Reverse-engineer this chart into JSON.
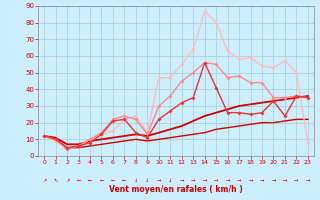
{
  "bg_color": "#cceeff",
  "grid_color": "#aacccc",
  "xlabel": "Vent moyen/en rafales ( km/h )",
  "xlim": [
    -0.5,
    23.5
  ],
  "ylim": [
    0,
    90
  ],
  "yticks": [
    0,
    10,
    20,
    30,
    40,
    50,
    60,
    70,
    80,
    90
  ],
  "xticks": [
    0,
    1,
    2,
    3,
    4,
    5,
    6,
    7,
    8,
    9,
    10,
    11,
    12,
    13,
    14,
    15,
    16,
    17,
    18,
    19,
    20,
    21,
    22,
    23
  ],
  "series": [
    {
      "comment": "lightest pink - rafales max",
      "x": [
        0,
        1,
        2,
        3,
        4,
        5,
        6,
        7,
        8,
        9,
        10,
        11,
        12,
        13,
        14,
        15,
        16,
        17,
        18,
        19,
        20,
        21,
        22,
        23
      ],
      "y": [
        12,
        9,
        4,
        6,
        10,
        13,
        15,
        22,
        24,
        14,
        47,
        47,
        55,
        64,
        87,
        80,
        63,
        58,
        59,
        54,
        53,
        57,
        50,
        8
      ],
      "color": "#ffbbbb",
      "lw": 1.0,
      "marker": "D",
      "ms": 2.0
    },
    {
      "comment": "medium pink - rafales mid",
      "x": [
        0,
        1,
        2,
        3,
        4,
        5,
        6,
        7,
        8,
        9,
        10,
        11,
        12,
        13,
        14,
        15,
        16,
        17,
        18,
        19,
        20,
        21,
        22,
        23
      ],
      "y": [
        12,
        10,
        4,
        6,
        10,
        14,
        22,
        24,
        22,
        13,
        30,
        36,
        45,
        50,
        56,
        55,
        47,
        48,
        44,
        44,
        35,
        35,
        36,
        35
      ],
      "color": "#ff8888",
      "lw": 1.0,
      "marker": "D",
      "ms": 2.0
    },
    {
      "comment": "darker red with markers - vent moyen",
      "x": [
        0,
        1,
        2,
        3,
        4,
        5,
        6,
        7,
        8,
        9,
        10,
        11,
        12,
        13,
        14,
        15,
        16,
        17,
        18,
        19,
        20,
        21,
        22,
        23
      ],
      "y": [
        12,
        10,
        5,
        6,
        8,
        13,
        21,
        22,
        14,
        11,
        22,
        27,
        32,
        35,
        56,
        41,
        26,
        26,
        25,
        26,
        33,
        24,
        36,
        35
      ],
      "color": "#ee3333",
      "lw": 1.0,
      "marker": "D",
      "ms": 2.0
    },
    {
      "comment": "dark red line 1 - regression/trend upper",
      "x": [
        0,
        1,
        2,
        3,
        4,
        5,
        6,
        7,
        8,
        9,
        10,
        11,
        12,
        13,
        14,
        15,
        16,
        17,
        18,
        19,
        20,
        21,
        22,
        23
      ],
      "y": [
        12,
        11,
        7,
        7,
        9,
        10,
        11,
        12,
        13,
        12,
        14,
        16,
        18,
        21,
        24,
        26,
        28,
        30,
        31,
        32,
        33,
        34,
        35,
        36
      ],
      "color": "#cc0000",
      "lw": 1.3,
      "marker": null,
      "ms": 0
    },
    {
      "comment": "dark red line 2 - regression/trend lower",
      "x": [
        0,
        1,
        2,
        3,
        4,
        5,
        6,
        7,
        8,
        9,
        10,
        11,
        12,
        13,
        14,
        15,
        16,
        17,
        18,
        19,
        20,
        21,
        22,
        23
      ],
      "y": [
        12,
        10,
        5,
        5,
        6,
        7,
        8,
        9,
        10,
        9,
        10,
        11,
        12,
        13,
        14,
        16,
        17,
        18,
        19,
        20,
        20,
        21,
        22,
        22
      ],
      "color": "#cc0000",
      "lw": 1.0,
      "marker": null,
      "ms": 0
    }
  ],
  "arrow_row": [
    "NE",
    "NW",
    "NE",
    "W",
    "W",
    "W",
    "W",
    "W",
    "S",
    "S",
    "E",
    "S",
    "E",
    "E",
    "E",
    "E",
    "E",
    "E",
    "E",
    "E",
    "E",
    "E",
    "E",
    "E"
  ],
  "arrow_symbols": [
    "↗",
    "↖",
    "↗",
    "←",
    "←",
    "←",
    "←",
    "←",
    "↓",
    "↓",
    "→",
    "↓",
    "→",
    "→",
    "→",
    "→",
    "→",
    "→",
    "→",
    "→",
    "→",
    "→",
    "→",
    "→"
  ]
}
